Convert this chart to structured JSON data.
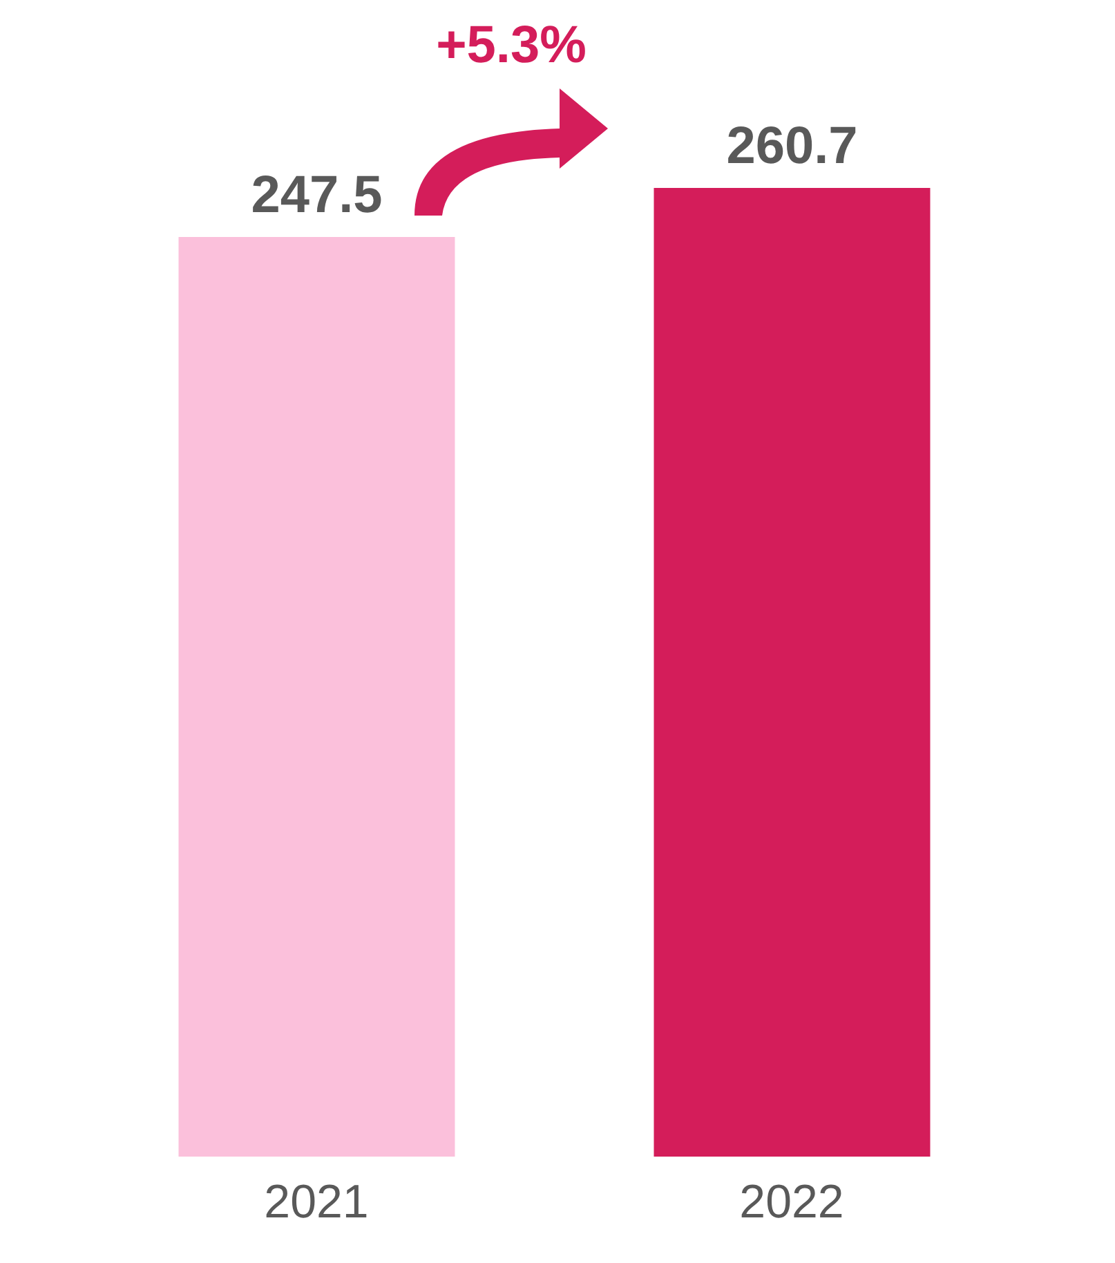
{
  "chart_data": {
    "type": "bar",
    "categories": [
      "2021",
      "2022"
    ],
    "values": [
      247.5,
      260.7
    ],
    "colors": [
      "#fbc0db",
      "#d41d5a"
    ],
    "tick_labels": "x",
    "data_labels": true,
    "annotations": [
      "+5.3%"
    ]
  }
}
